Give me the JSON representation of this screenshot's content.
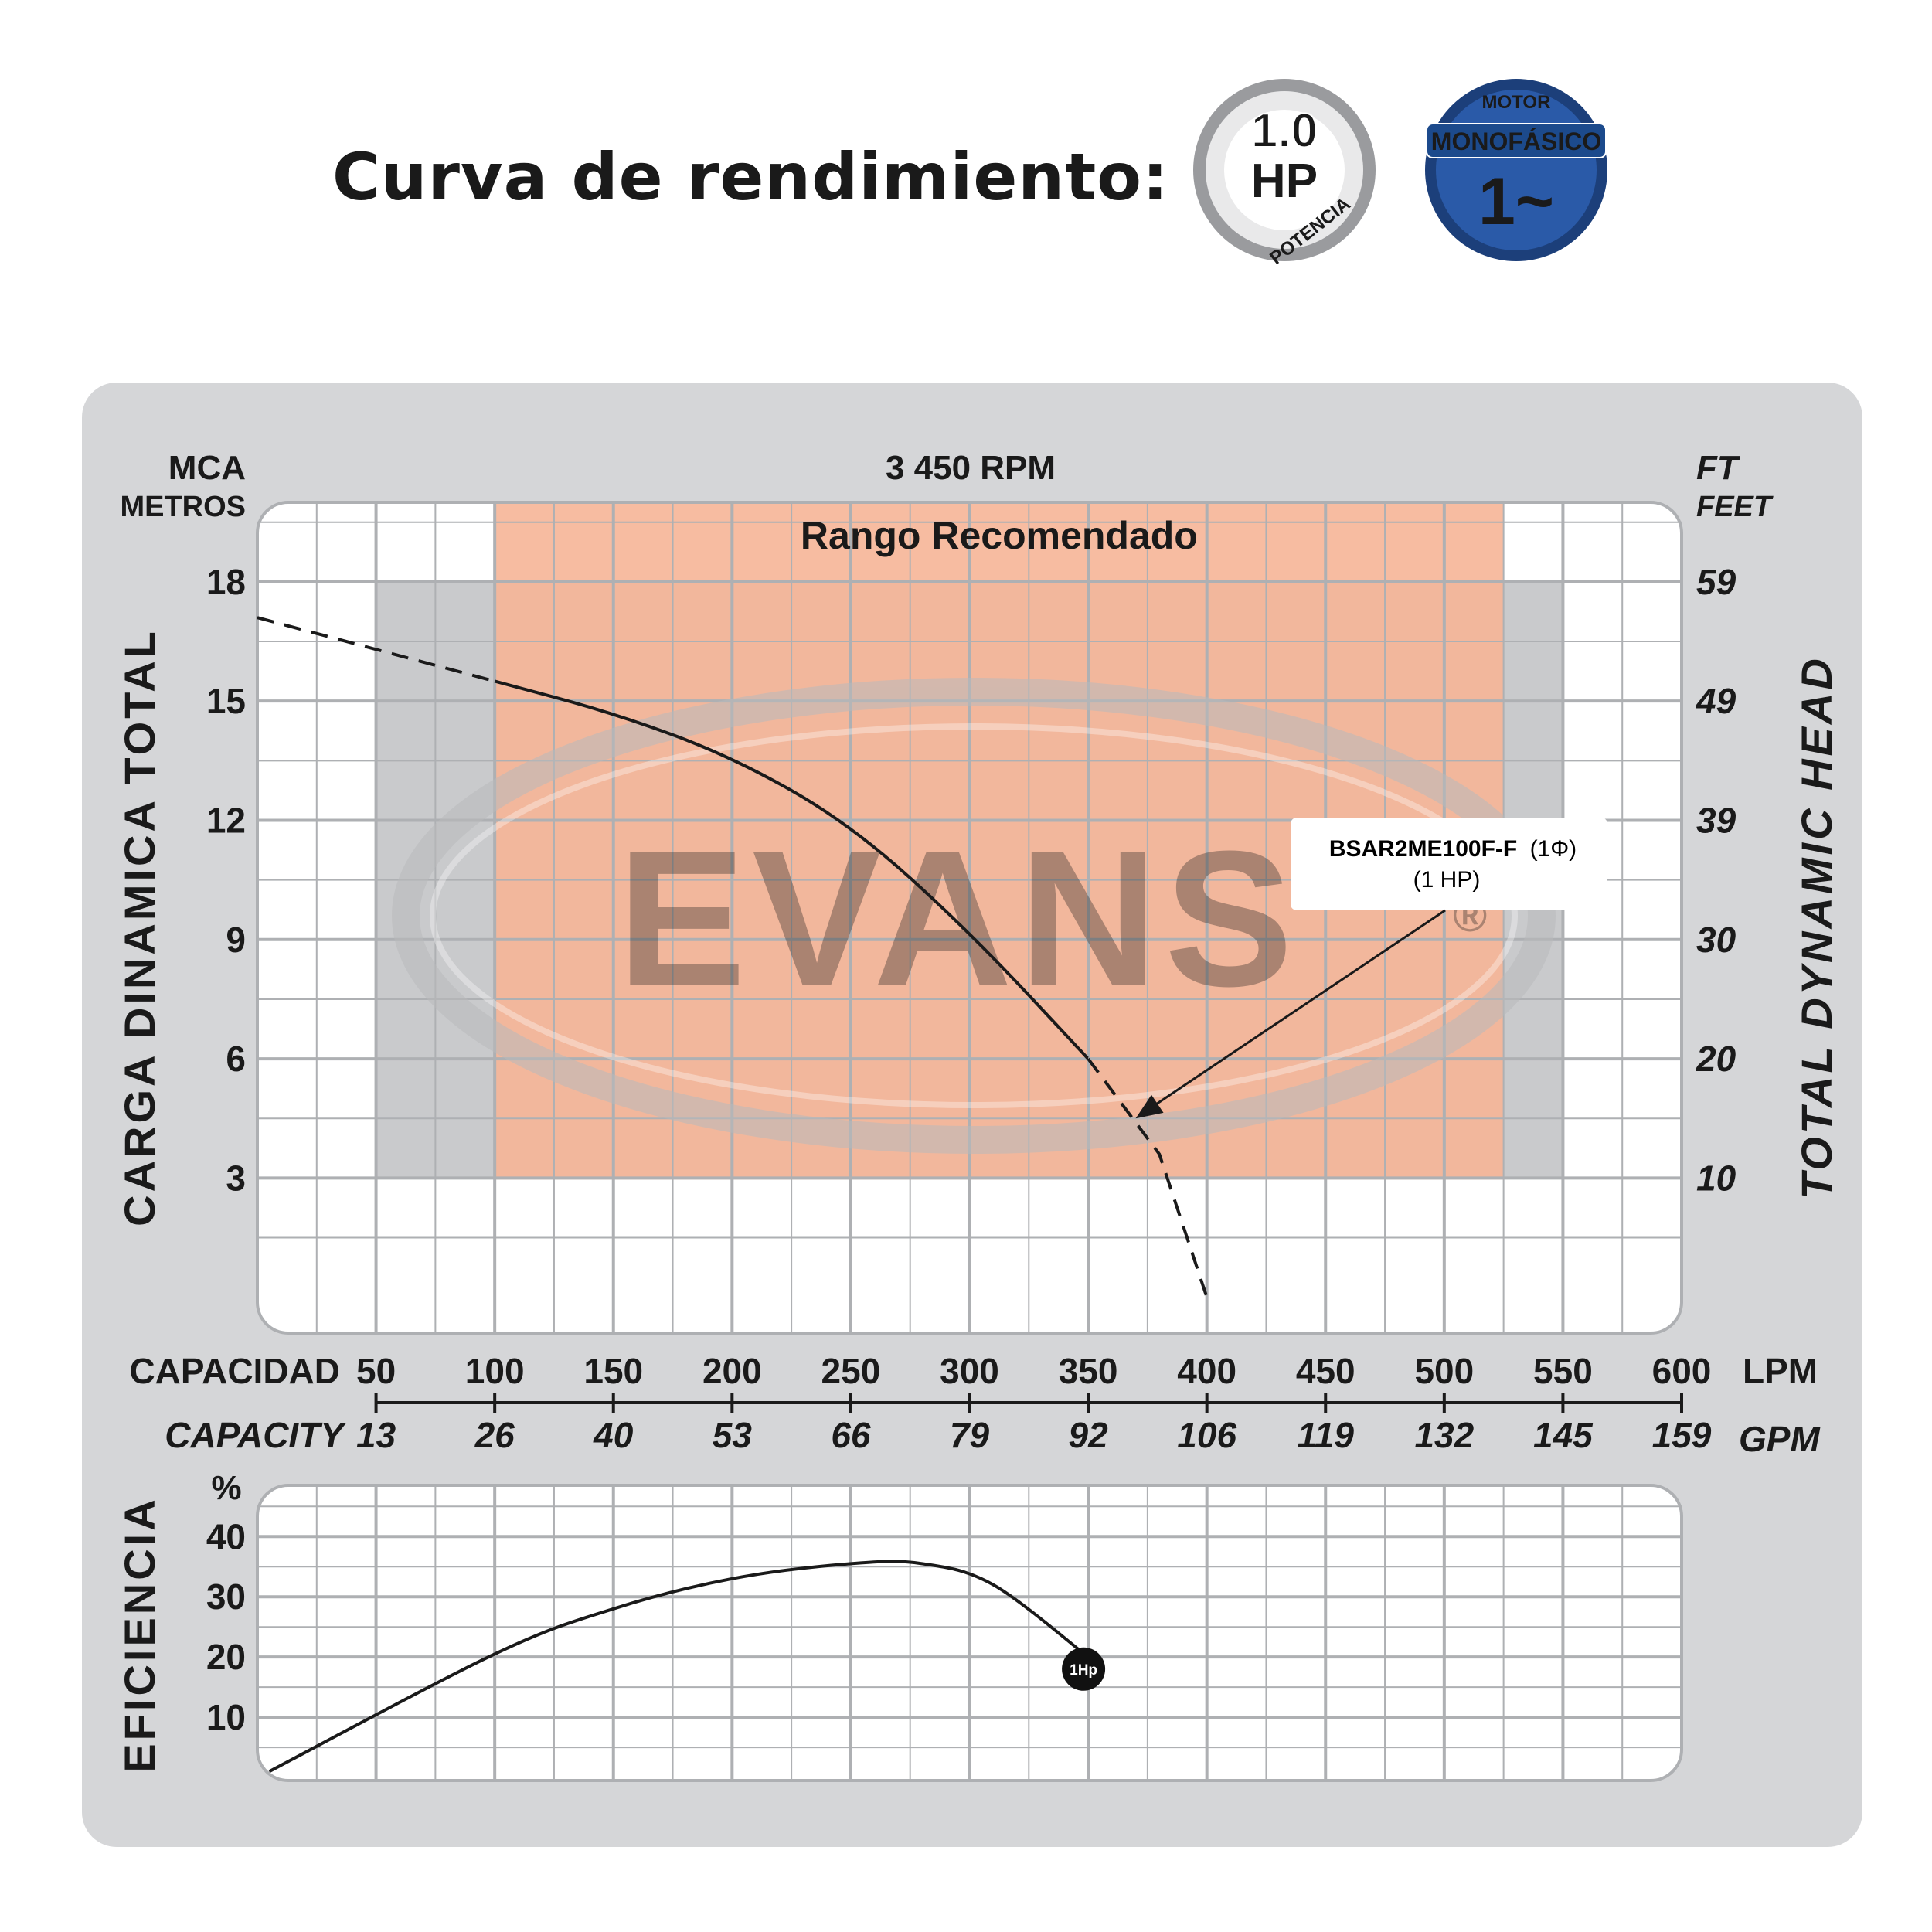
{
  "header": {
    "title": "Curva de rendimiento:",
    "badge_hp": {
      "value": "1.0",
      "unit": "HP",
      "caption": "POTENCIA"
    },
    "badge_motor": {
      "top": "MOTOR",
      "label": "MONOFÁSICO",
      "symbol": "1~"
    }
  },
  "colors": {
    "panel": "#d5d6d8",
    "grid_line": "#aeb0b3",
    "recommended_band": "#f6b597",
    "curve": "#1a1a1a",
    "badge_hp_text": "#f26a1b",
    "badge_motor_bg": "#1c4a8c"
  },
  "watermark": {
    "text": "EVANS",
    "mark": "®"
  },
  "chart_data": [
    {
      "type": "line",
      "title": "3 450 RPM",
      "band_label": "Rango Recomendado",
      "recommended_range_lpm": [
        100,
        525
      ],
      "left_axis": {
        "unit_top": "MCA",
        "unit_bottom": "METROS",
        "title": "CARGA DINAMICA TOTAL",
        "ticks": [
          3,
          6,
          9,
          12,
          15,
          18
        ],
        "range": [
          -0.9,
          20
        ]
      },
      "right_axis": {
        "unit_top": "FT",
        "unit_bottom": "FEET",
        "title": "TOTAL DYNAMIC HEAD",
        "ticks": [
          "10",
          "20",
          "30",
          "39",
          "49",
          "59"
        ]
      },
      "x_axis": {
        "range": [
          0,
          600
        ],
        "lpm_label": "CAPACIDAD",
        "lpm_unit": "LPM",
        "lpm_ticks": [
          50,
          100,
          150,
          200,
          250,
          300,
          350,
          400,
          450,
          500,
          550,
          600
        ],
        "gpm_label": "CAPACITY",
        "gpm_unit": "GPM",
        "gpm_ticks": [
          "13",
          "26",
          "40",
          "53",
          "66",
          "79",
          "92",
          "106",
          "119",
          "132",
          "145",
          "159"
        ]
      },
      "series": [
        {
          "name": "BSAR2ME100F-F (1Φ)",
          "sub": "(1 HP)",
          "dashed_head": [
            [
              0,
              17.1
            ],
            [
              100,
              15.5
            ]
          ],
          "solid": [
            [
              100,
              15.5
            ],
            [
              150,
              14.7
            ],
            [
              200,
              13.6
            ],
            [
              250,
              11.9
            ],
            [
              300,
              9.2
            ],
            [
              350,
              6.0
            ]
          ],
          "dashed_tail": [
            [
              350,
              6.0
            ],
            [
              380,
              3.6
            ],
            [
              400,
              0
            ]
          ]
        }
      ],
      "annotation": {
        "label": "BSAR2ME100F-F",
        "phase": "(1Φ)",
        "hp": "(1 HP)",
        "arrow_to": [
          370,
          4.5
        ]
      }
    },
    {
      "type": "line",
      "title": "",
      "y_axis": {
        "title": "EFICIENCIA",
        "unit": "%",
        "ticks": [
          10,
          20,
          30,
          40
        ],
        "range": [
          -0.5,
          48.5
        ]
      },
      "x_axis": {
        "range": [
          0,
          600
        ]
      },
      "series": [
        {
          "name": "",
          "points": [
            [
              5,
              1
            ],
            [
              100,
              20.5
            ],
            [
              150,
              28
            ],
            [
              200,
              33
            ],
            [
              250,
              35.5
            ],
            [
              280,
              35.5
            ],
            [
              310,
              32
            ],
            [
              350,
              20
            ]
          ],
          "end_marker": {
            "label": "1Hp",
            "at": [
              350,
              18
            ]
          }
        }
      ]
    }
  ]
}
